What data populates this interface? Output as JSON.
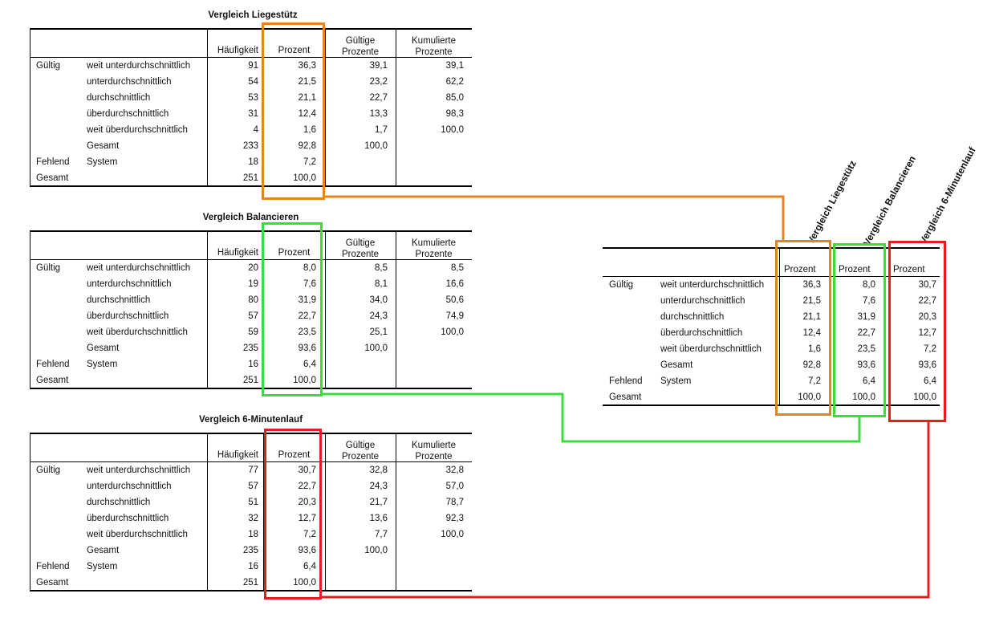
{
  "tables": [
    {
      "title": "Vergleich Liegestütz",
      "headers": {
        "freq": "Häufigkeit",
        "percent": "Prozent",
        "valid": [
          "Gültige",
          "Prozente"
        ],
        "cum": [
          "Kumulierte",
          "Prozente"
        ]
      },
      "rows": [
        {
          "group": "Gültig",
          "label": "weit unterdurchschnittlich",
          "freq": "91",
          "percent": "36,3",
          "valid": "39,1",
          "cum": "39,1"
        },
        {
          "group": "",
          "label": "unterdurchschnittlich",
          "freq": "54",
          "percent": "21,5",
          "valid": "23,2",
          "cum": "62,2"
        },
        {
          "group": "",
          "label": "durchschnittlich",
          "freq": "53",
          "percent": "21,1",
          "valid": "22,7",
          "cum": "85,0"
        },
        {
          "group": "",
          "label": "überdurchschnittlich",
          "freq": "31",
          "percent": "12,4",
          "valid": "13,3",
          "cum": "98,3"
        },
        {
          "group": "",
          "label": "weit überdurchschnittlich",
          "freq": "4",
          "percent": "1,6",
          "valid": "1,7",
          "cum": "100,0"
        },
        {
          "group": "",
          "label": "Gesamt",
          "freq": "233",
          "percent": "92,8",
          "valid": "100,0",
          "cum": ""
        },
        {
          "group": "Fehlend",
          "label": "System",
          "freq": "18",
          "percent": "7,2",
          "valid": "",
          "cum": ""
        },
        {
          "group": "Gesamt",
          "label": "",
          "freq": "251",
          "percent": "100,0",
          "valid": "",
          "cum": ""
        }
      ]
    },
    {
      "title": "Vergleich Balancieren",
      "headers": {
        "freq": "Häufigkeit",
        "percent": "Prozent",
        "valid": [
          "Gültige",
          "Prozente"
        ],
        "cum": [
          "Kumulierte",
          "Prozente"
        ]
      },
      "rows": [
        {
          "group": "Gültig",
          "label": "weit unterdurchschnittlich",
          "freq": "20",
          "percent": "8,0",
          "valid": "8,5",
          "cum": "8,5"
        },
        {
          "group": "",
          "label": "unterdurchschnittlich",
          "freq": "19",
          "percent": "7,6",
          "valid": "8,1",
          "cum": "16,6"
        },
        {
          "group": "",
          "label": "durchschnittlich",
          "freq": "80",
          "percent": "31,9",
          "valid": "34,0",
          "cum": "50,6"
        },
        {
          "group": "",
          "label": "überdurchschnittlich",
          "freq": "57",
          "percent": "22,7",
          "valid": "24,3",
          "cum": "74,9"
        },
        {
          "group": "",
          "label": "weit überdurchschnittlich",
          "freq": "59",
          "percent": "23,5",
          "valid": "25,1",
          "cum": "100,0"
        },
        {
          "group": "",
          "label": "Gesamt",
          "freq": "235",
          "percent": "93,6",
          "valid": "100,0",
          "cum": ""
        },
        {
          "group": "Fehlend",
          "label": "System",
          "freq": "16",
          "percent": "6,4",
          "valid": "",
          "cum": ""
        },
        {
          "group": "Gesamt",
          "label": "",
          "freq": "251",
          "percent": "100,0",
          "valid": "",
          "cum": ""
        }
      ]
    },
    {
      "title": "Vergleich 6-Minutenlauf",
      "headers": {
        "freq": "Häufigkeit",
        "percent": "Prozent",
        "valid": [
          "Gültige",
          "Prozente"
        ],
        "cum": [
          "Kumulierte",
          "Prozente"
        ]
      },
      "rows": [
        {
          "group": "Gültig",
          "label": "weit unterdurchschnittlich",
          "freq": "77",
          "percent": "30,7",
          "valid": "32,8",
          "cum": "32,8"
        },
        {
          "group": "",
          "label": "unterdurchschnittlich",
          "freq": "57",
          "percent": "22,7",
          "valid": "24,3",
          "cum": "57,0"
        },
        {
          "group": "",
          "label": "durchschnittlich",
          "freq": "51",
          "percent": "20,3",
          "valid": "21,7",
          "cum": "78,7"
        },
        {
          "group": "",
          "label": "überdurchschnittlich",
          "freq": "32",
          "percent": "12,7",
          "valid": "13,6",
          "cum": "92,3"
        },
        {
          "group": "",
          "label": "weit überdurchschnittlich",
          "freq": "18",
          "percent": "7,2",
          "valid": "7,7",
          "cum": "100,0"
        },
        {
          "group": "",
          "label": "Gesamt",
          "freq": "235",
          "percent": "93,6",
          "valid": "100,0",
          "cum": ""
        },
        {
          "group": "Fehlend",
          "label": "System",
          "freq": "16",
          "percent": "6,4",
          "valid": "",
          "cum": ""
        },
        {
          "group": "Gesamt",
          "label": "",
          "freq": "251",
          "percent": "100,0",
          "valid": "",
          "cum": ""
        }
      ]
    }
  ],
  "summary": {
    "column_titles": [
      "Vergleich Liegestütz",
      "Vergleich Balancieren",
      "Vergleich 6-Minutenlauf"
    ],
    "header": "Prozent",
    "rows": [
      {
        "group": "Gültig",
        "label": "weit unterdurchschnittlich",
        "values": [
          "36,3",
          "8,0",
          "30,7"
        ]
      },
      {
        "group": "",
        "label": "unterdurchschnittlich",
        "values": [
          "21,5",
          "7,6",
          "22,7"
        ]
      },
      {
        "group": "",
        "label": "durchschnittlich",
        "values": [
          "21,1",
          "31,9",
          "20,3"
        ]
      },
      {
        "group": "",
        "label": "überdurchschnittlich",
        "values": [
          "12,4",
          "22,7",
          "12,7"
        ]
      },
      {
        "group": "",
        "label": "weit überdurchschnittlich",
        "values": [
          "1,6",
          "23,5",
          "7,2"
        ]
      },
      {
        "group": "",
        "label": "Gesamt",
        "values": [
          "92,8",
          "93,6",
          "93,6"
        ]
      },
      {
        "group": "Fehlend",
        "label": "System",
        "values": [
          "7,2",
          "6,4",
          "6,4"
        ]
      },
      {
        "group": "Gesamt",
        "label": "",
        "values": [
          "100,0",
          "100,0",
          "100,0"
        ]
      }
    ]
  },
  "colors": {
    "liegestuetz": "#e8821e",
    "balancieren": "#3ddc3d",
    "minutenlauf": "#e02020"
  }
}
